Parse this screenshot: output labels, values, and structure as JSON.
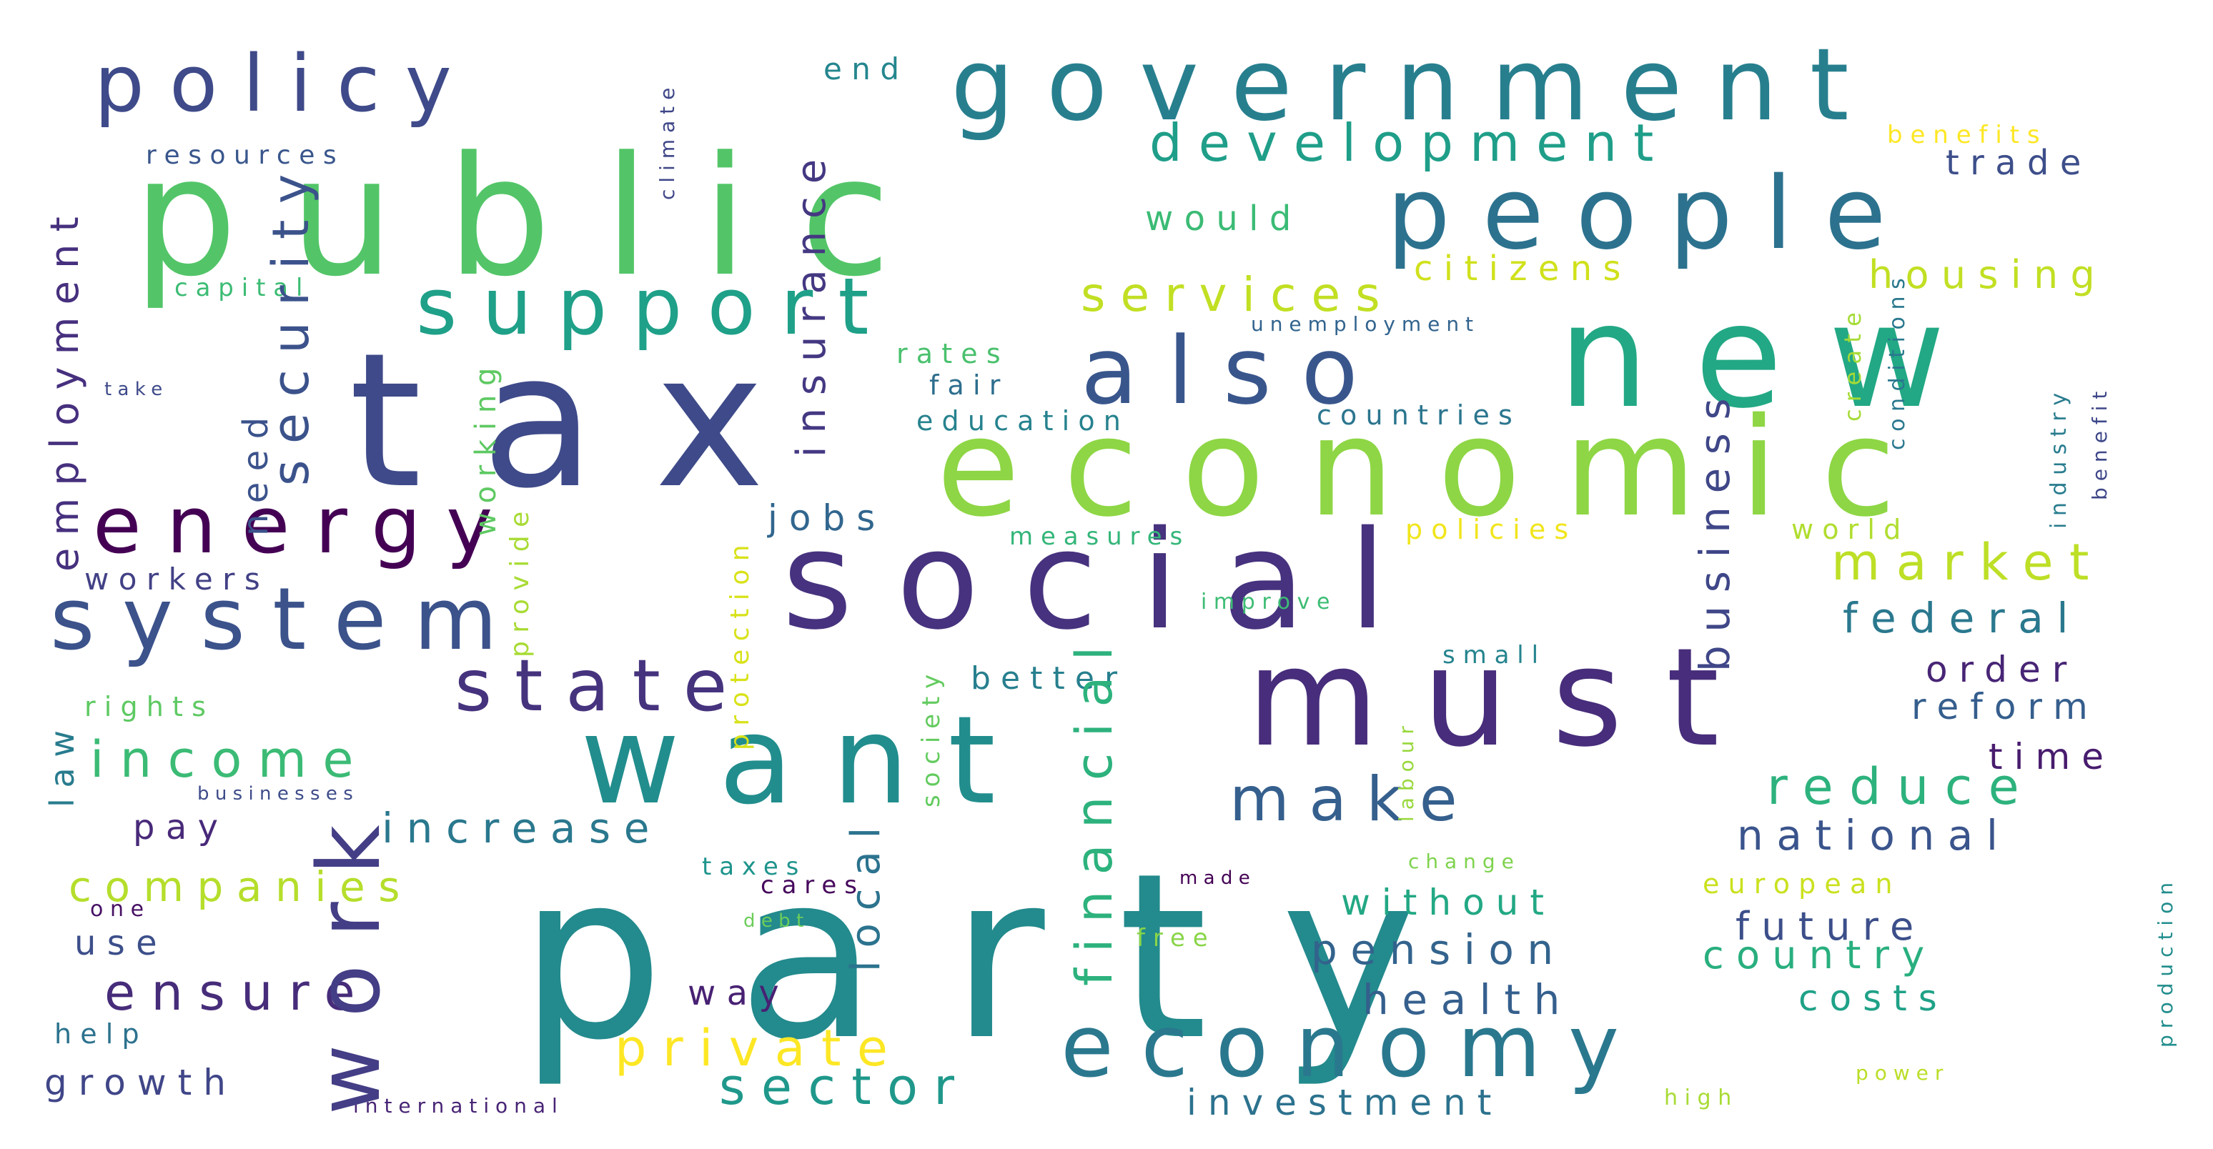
{
  "words": [
    {
      "text": "party",
      "color": "#238a8d"
    },
    {
      "text": "tax",
      "color": "#3e4a89"
    },
    {
      "text": "public",
      "color": "#53c568"
    },
    {
      "text": "social",
      "color": "#46327e"
    },
    {
      "text": "economic",
      "color": "#8ed645"
    },
    {
      "text": "government",
      "color": "#277f8e"
    },
    {
      "text": "new",
      "color": "#22a884"
    },
    {
      "text": "must",
      "color": "#472d7b"
    },
    {
      "text": "want",
      "color": "#228d8d"
    },
    {
      "text": "people",
      "color": "#2c728e"
    },
    {
      "text": "also",
      "color": "#39568c"
    },
    {
      "text": "system",
      "color": "#3b528b"
    },
    {
      "text": "work",
      "color": "#433e85"
    },
    {
      "text": "policy",
      "color": "#3e4a89"
    },
    {
      "text": "support",
      "color": "#1fa088"
    },
    {
      "text": "energy",
      "color": "#440154"
    },
    {
      "text": "economy",
      "color": "#2a788e"
    },
    {
      "text": "state",
      "color": "#46337e"
    },
    {
      "text": "make",
      "color": "#355f8d"
    },
    {
      "text": "development",
      "color": "#1f9e89"
    },
    {
      "text": "security",
      "color": "#3b528b"
    },
    {
      "text": "financial",
      "color": "#2db27d"
    },
    {
      "text": "business",
      "color": "#3f4788"
    },
    {
      "text": "services",
      "color": "#c2df23"
    },
    {
      "text": "income",
      "color": "#3bbb75"
    },
    {
      "text": "reduce",
      "color": "#2db27d"
    },
    {
      "text": "insurance",
      "color": "#453882"
    },
    {
      "text": "employment",
      "color": "#46307e"
    },
    {
      "text": "private",
      "color": "#fde725"
    },
    {
      "text": "market",
      "color": "#bddf26"
    },
    {
      "text": "local",
      "color": "#2c738e"
    },
    {
      "text": "sector",
      "color": "#1f988b"
    },
    {
      "text": "ensure",
      "color": "#472c7a"
    },
    {
      "text": "increase",
      "color": "#2a788e"
    },
    {
      "text": "companies",
      "color": "#b5de2b"
    },
    {
      "text": "pension",
      "color": "#33638d"
    },
    {
      "text": "national",
      "color": "#3a548c"
    },
    {
      "text": "investment",
      "color": "#2c728e"
    },
    {
      "text": "housing",
      "color": "#c2df23"
    },
    {
      "text": "federal",
      "color": "#2a788e"
    },
    {
      "text": "health",
      "color": "#355f8d"
    },
    {
      "text": "country",
      "color": "#29af7f"
    },
    {
      "text": "future",
      "color": "#3c4f8a"
    },
    {
      "text": "reform",
      "color": "#355e8d"
    },
    {
      "text": "without",
      "color": "#22a884"
    },
    {
      "text": "working",
      "color": "#5ec962"
    },
    {
      "text": "citizens",
      "color": "#d0e11c"
    },
    {
      "text": "protection",
      "color": "#d8e219"
    },
    {
      "text": "better",
      "color": "#277f8e"
    },
    {
      "text": "need",
      "color": "#3b528b"
    },
    {
      "text": "growth",
      "color": "#404688"
    },
    {
      "text": "costs",
      "color": "#1fa187"
    },
    {
      "text": "order",
      "color": "#482576"
    },
    {
      "text": "time",
      "color": "#481c6e"
    },
    {
      "text": "trade",
      "color": "#3d4e8a"
    },
    {
      "text": "would",
      "color": "#3bbb75"
    },
    {
      "text": "workers",
      "color": "#424186"
    },
    {
      "text": "provide",
      "color": "#a8db34"
    },
    {
      "text": "jobs",
      "color": "#31668e"
    },
    {
      "text": "use",
      "color": "#3c4f8a"
    },
    {
      "text": "pay",
      "color": "#482979"
    },
    {
      "text": "way",
      "color": "#482173"
    },
    {
      "text": "law",
      "color": "#287c8e"
    },
    {
      "text": "society",
      "color": "#63cb5f"
    },
    {
      "text": "education",
      "color": "#26828e"
    },
    {
      "text": "countries",
      "color": "#2b758e"
    },
    {
      "text": "policies",
      "color": "#f1e51d"
    },
    {
      "text": "rights",
      "color": "#5ec962"
    },
    {
      "text": "measures",
      "color": "#34b679"
    },
    {
      "text": "create",
      "color": "#a5db36"
    },
    {
      "text": "fair",
      "color": "#2e6e8e"
    },
    {
      "text": "industry",
      "color": "#287c8e"
    },
    {
      "text": "benefits",
      "color": "#fde725"
    },
    {
      "text": "conditions",
      "color": "#2a788e"
    },
    {
      "text": "world",
      "color": "#b0dd2f"
    },
    {
      "text": "end",
      "color": "#24868e"
    },
    {
      "text": "capital",
      "color": "#3dbc74"
    },
    {
      "text": "rates",
      "color": "#4ac16d"
    },
    {
      "text": "small",
      "color": "#25848e"
    },
    {
      "text": "resources",
      "color": "#39568c"
    },
    {
      "text": "taxes",
      "color": "#1f948c"
    },
    {
      "text": "cares",
      "color": "#46085c"
    },
    {
      "text": "european",
      "color": "#cae11f"
    },
    {
      "text": "free",
      "color": "#89d548"
    },
    {
      "text": "help",
      "color": "#2c728e"
    },
    {
      "text": "climate",
      "color": "#3f4788"
    },
    {
      "text": "labour",
      "color": "#99d83d"
    },
    {
      "text": "unemployment",
      "color": "#32648e"
    },
    {
      "text": "benefit",
      "color": "#3f4889"
    },
    {
      "text": "improve",
      "color": "#3dbc74"
    },
    {
      "text": "production",
      "color": "#228d8d"
    },
    {
      "text": "high",
      "color": "#a8db34"
    },
    {
      "text": "power",
      "color": "#bade28"
    },
    {
      "text": "change",
      "color": "#7fd34e"
    },
    {
      "text": "international",
      "color": "#482475"
    },
    {
      "text": "businesses",
      "color": "#3e4c8a"
    },
    {
      "text": "one",
      "color": "#471164"
    },
    {
      "text": "take",
      "color": "#3e4a89"
    },
    {
      "text": "debt",
      "color": "#6ccd5a"
    },
    {
      "text": "made",
      "color": "#440154"
    }
  ]
}
